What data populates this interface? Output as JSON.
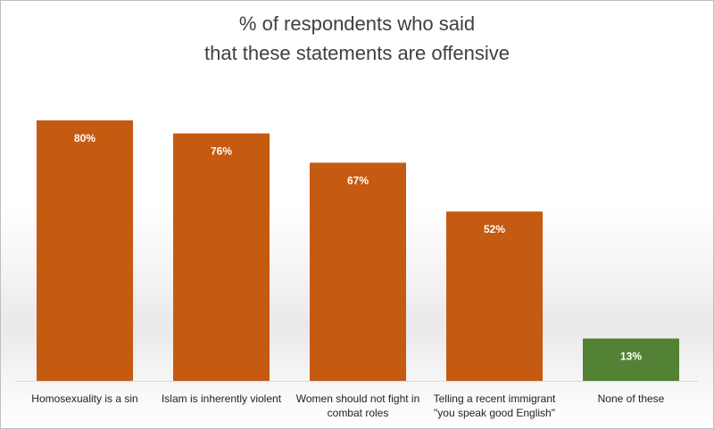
{
  "chart_data": {
    "type": "bar",
    "title_lines": [
      "% of respondents who said",
      "that these statements are offensive"
    ],
    "categories": [
      [
        "Homosexuality is a sin"
      ],
      [
        "Islam is inherently violent"
      ],
      [
        "Women should not fight in",
        "combat roles"
      ],
      [
        "Telling a recent immigrant",
        "\"you speak good English\""
      ],
      [
        "None of these"
      ]
    ],
    "values": [
      80,
      76,
      67,
      52,
      13
    ],
    "value_labels": [
      "80%",
      "76%",
      "67%",
      "52%",
      "13%"
    ],
    "bar_colors": [
      "#c55a11",
      "#c55a11",
      "#c55a11",
      "#c55a11",
      "#548235"
    ],
    "ylim": [
      0,
      100
    ],
    "grid": false,
    "legend": "none",
    "data_label_color": "#ffffff"
  }
}
